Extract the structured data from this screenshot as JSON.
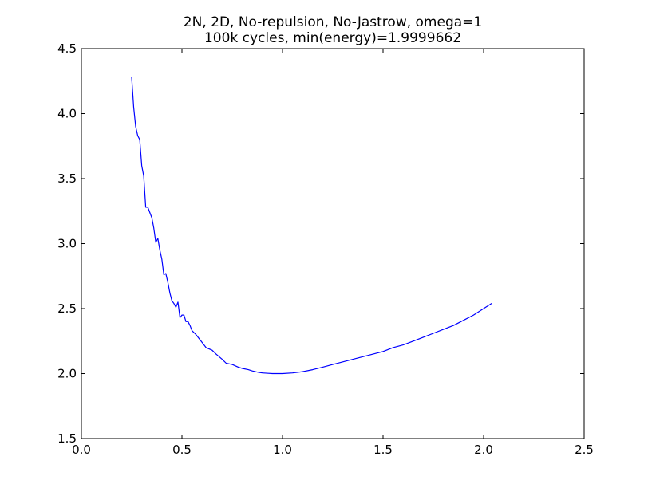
{
  "chart_data": {
    "type": "line",
    "title_line1": "2N, 2D, No-repulsion, No-Jastrow, omega=1",
    "title_line2": "100k cycles, min(energy)=1.9999662",
    "xlabel": "",
    "ylabel": "",
    "xlim": [
      0.0,
      2.5
    ],
    "ylim": [
      1.5,
      4.5
    ],
    "x_ticks": [
      {
        "value": 0.0,
        "label": "0.0"
      },
      {
        "value": 0.5,
        "label": "0.5"
      },
      {
        "value": 1.0,
        "label": "1.0"
      },
      {
        "value": 1.5,
        "label": "1.5"
      },
      {
        "value": 2.0,
        "label": "2.0"
      },
      {
        "value": 2.5,
        "label": "2.5"
      }
    ],
    "y_ticks": [
      {
        "value": 1.5,
        "label": "1.5"
      },
      {
        "value": 2.0,
        "label": "2.0"
      },
      {
        "value": 2.5,
        "label": "2.5"
      },
      {
        "value": 3.0,
        "label": "3.0"
      },
      {
        "value": 3.5,
        "label": "3.5"
      },
      {
        "value": 4.0,
        "label": "4.0"
      },
      {
        "value": 4.5,
        "label": "4.5"
      }
    ],
    "grid": false,
    "series": [
      {
        "color": "#0000ff",
        "x": [
          0.25,
          0.26,
          0.27,
          0.28,
          0.29,
          0.3,
          0.31,
          0.32,
          0.33,
          0.34,
          0.35,
          0.36,
          0.37,
          0.38,
          0.39,
          0.4,
          0.41,
          0.42,
          0.43,
          0.44,
          0.45,
          0.46,
          0.47,
          0.48,
          0.49,
          0.5,
          0.51,
          0.52,
          0.53,
          0.54,
          0.55,
          0.57,
          0.6,
          0.62,
          0.65,
          0.67,
          0.7,
          0.72,
          0.75,
          0.78,
          0.8,
          0.83,
          0.85,
          0.88,
          0.9,
          0.93,
          0.95,
          0.98,
          1.0,
          1.05,
          1.1,
          1.15,
          1.2,
          1.25,
          1.3,
          1.35,
          1.4,
          1.45,
          1.5,
          1.55,
          1.6,
          1.65,
          1.7,
          1.75,
          1.8,
          1.85,
          1.9,
          1.95,
          2.0,
          2.03,
          2.04
        ],
        "y": [
          4.28,
          4.05,
          3.9,
          3.83,
          3.8,
          3.6,
          3.52,
          3.28,
          3.28,
          3.24,
          3.2,
          3.12,
          3.01,
          3.04,
          2.95,
          2.88,
          2.76,
          2.77,
          2.7,
          2.62,
          2.56,
          2.54,
          2.51,
          2.55,
          2.43,
          2.45,
          2.45,
          2.4,
          2.4,
          2.37,
          2.33,
          2.3,
          2.24,
          2.2,
          2.18,
          2.15,
          2.11,
          2.08,
          2.07,
          2.05,
          2.04,
          2.03,
          2.02,
          2.01,
          2.005,
          2.002,
          2.0,
          2.0,
          2.0,
          2.005,
          2.015,
          2.03,
          2.05,
          2.07,
          2.09,
          2.11,
          2.13,
          2.15,
          2.17,
          2.2,
          2.22,
          2.25,
          2.28,
          2.31,
          2.34,
          2.37,
          2.41,
          2.45,
          2.5,
          2.53,
          2.54
        ]
      }
    ]
  }
}
